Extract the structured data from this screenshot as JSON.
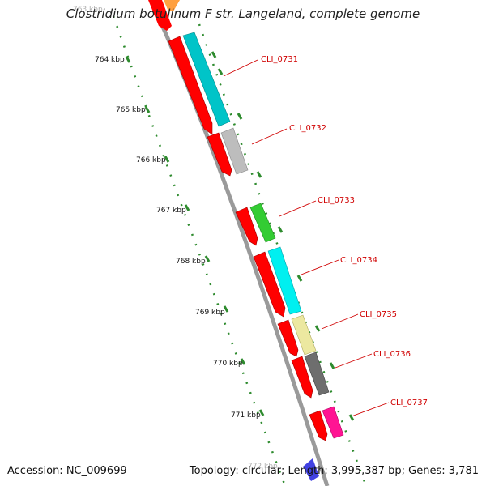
{
  "title": "Clostridium botulinum F str. Langeland, complete genome",
  "footer": {
    "accession": "Accession: NC_009699",
    "summary": "Topology: circular; Length: 3,995,387 bp; Genes: 3,781"
  },
  "kbp_ticks": [
    "763 kbp",
    "764 kbp",
    "765 kbp",
    "766 kbp",
    "767 kbp",
    "768 kbp",
    "769 kbp",
    "770 kbp",
    "771 kbp",
    "772 kbp"
  ],
  "gene_labels": [
    "CLI_0731",
    "CLI_0732",
    "CLI_0733",
    "CLI_0734",
    "CLI_0735",
    "CLI_0736",
    "CLI_0737"
  ],
  "colors": {
    "backbone": "#808080",
    "forward_strand": "#ff0000",
    "label": "#d00000",
    "tick_dots": "#228b22",
    "CLI_0731": "#00c8c8",
    "CLI_0732": "#b4b4b4",
    "CLI_0733": "#33cc33",
    "CLI_0734": "#00f0f0",
    "CLI_0735": "#ece8a0",
    "CLI_0736": "#6e6e6e",
    "CLI_0737": "#ff1493"
  }
}
